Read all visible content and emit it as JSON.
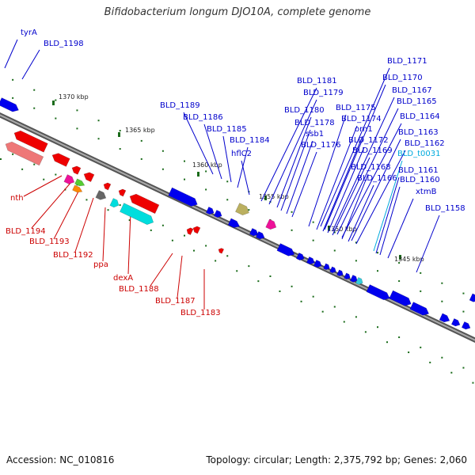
{
  "title": "Bifidobacterium longum DJO10A, complete genome",
  "footer": {
    "accession": "Accession: NC_010816",
    "summary": "Topology: circular; Length: 2,375,792 bp; Genes: 2,060"
  },
  "ruler": [
    "1370 kbp",
    "1365 kbp",
    "1360 kbp",
    "1355 kbp",
    "1350 kbp",
    "1345 kbp"
  ],
  "labels_forward": [
    "tyrA",
    "BLD_1198",
    "BLD_1189",
    "BLD_1186",
    "BLD_1185",
    "BLD_1184",
    "hflC2",
    "BLD_1181",
    "BLD_1179",
    "BLD_1180",
    "BLD_1178",
    "ssb1",
    "BLD_1176",
    "BLD_1175",
    "BLD_1174",
    "orn1",
    "BLD_1172",
    "BLD_1169",
    "BLD_1168",
    "BLD_1166",
    "BLD_1171",
    "BLD_1170",
    "BLD_1167",
    "BLD_1165",
    "BLD_1164",
    "BLD_1163",
    "BLD_1162",
    "BLD_t0031",
    "BLD_1161",
    "BLD_1160",
    "xtmB",
    "BLD_1158"
  ],
  "labels_reverse": [
    "nth",
    "BLD_1194",
    "BLD_1193",
    "BLD_1192",
    "ppa",
    "dexA",
    "BLD_1188",
    "BLD_1187",
    "BLD_1183"
  ],
  "colors": {
    "forward": "#0000ee",
    "reverse": "#ee0000",
    "trna": "#33ccdd",
    "backbone": "#888888",
    "ruler": "#1a6b1a",
    "pink": "#ee1199",
    "green": "#55cc33",
    "orange": "#ff8800",
    "gray": "#666666",
    "cyan": "#00dddd",
    "khaki": "#bbb060",
    "salmon": "#ee7777"
  }
}
